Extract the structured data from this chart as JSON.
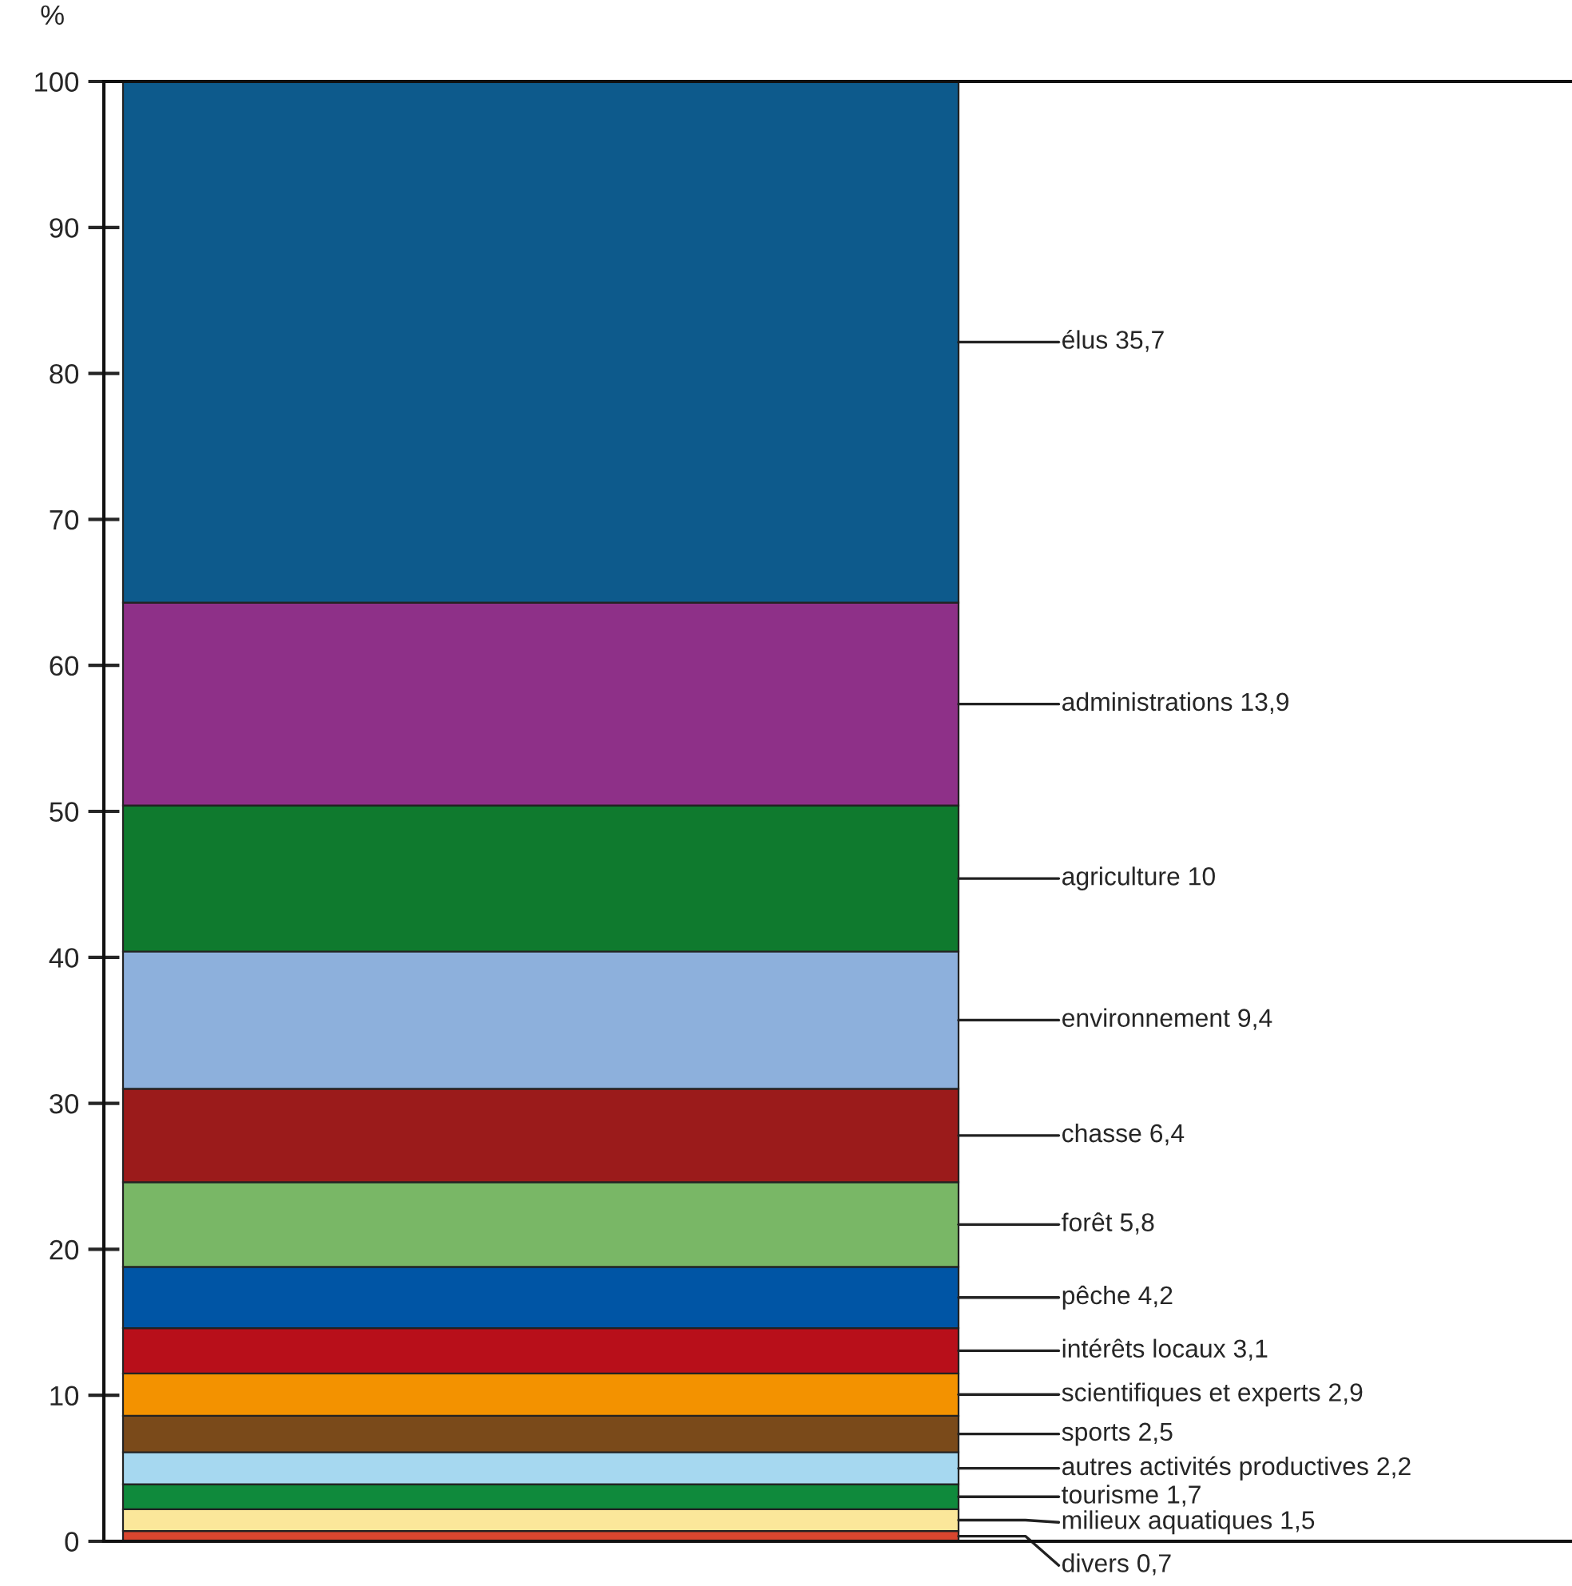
{
  "chart_data": {
    "type": "bar",
    "stacked": true,
    "ylabel": "%",
    "categories": [
      null
    ],
    "series": [
      {
        "name": "divers",
        "color": "#d9462f",
        "values": [
          0.7
        ],
        "value_labels": [
          "0,7"
        ]
      },
      {
        "name": "milieux aquatiques",
        "color": "#fbe79a",
        "values": [
          1.5
        ],
        "value_labels": [
          "1,5"
        ]
      },
      {
        "name": "tourisme",
        "color": "#0f8a3c",
        "values": [
          1.7
        ],
        "value_labels": [
          "1,7"
        ]
      },
      {
        "name": "autres activités productives",
        "color": "#a6d8f0",
        "values": [
          2.2
        ],
        "value_labels": [
          "2,2"
        ]
      },
      {
        "name": "sports",
        "color": "#7a4a1a",
        "values": [
          2.5
        ],
        "value_labels": [
          "2,5"
        ]
      },
      {
        "name": "scientifiques et experts",
        "color": "#f39200",
        "values": [
          2.9
        ],
        "value_labels": [
          "2,9"
        ]
      },
      {
        "name": "intérêts locaux",
        "color": "#b80f1a",
        "values": [
          3.1
        ],
        "value_labels": [
          "3,1"
        ]
      },
      {
        "name": "pêche",
        "color": "#0055a5",
        "values": [
          4.2
        ],
        "value_labels": [
          "4,2"
        ]
      },
      {
        "name": "forêt",
        "color": "#79b766",
        "values": [
          5.8
        ],
        "value_labels": [
          "5,8"
        ]
      },
      {
        "name": "chasse",
        "color": "#9b1b1b",
        "values": [
          6.4
        ],
        "value_labels": [
          "6,4"
        ]
      },
      {
        "name": "environnement",
        "color": "#8db0dc",
        "values": [
          9.4
        ],
        "value_labels": [
          "9,4"
        ]
      },
      {
        "name": "agriculture",
        "color": "#0f7a2e",
        "values": [
          10
        ],
        "value_labels": [
          "10"
        ]
      },
      {
        "name": "administrations",
        "color": "#8e3088",
        "values": [
          13.9
        ],
        "value_labels": [
          "13,9"
        ]
      },
      {
        "name": "élus",
        "color": "#0d5a8c",
        "values": [
          35.7
        ],
        "value_labels": [
          "35,7"
        ]
      }
    ],
    "ylim": [
      0,
      100
    ],
    "yticks": [
      0,
      10,
      20,
      30,
      40,
      50,
      60,
      70,
      80,
      90,
      100
    ],
    "tick_labels": "y",
    "grid": false,
    "legend": false
  }
}
